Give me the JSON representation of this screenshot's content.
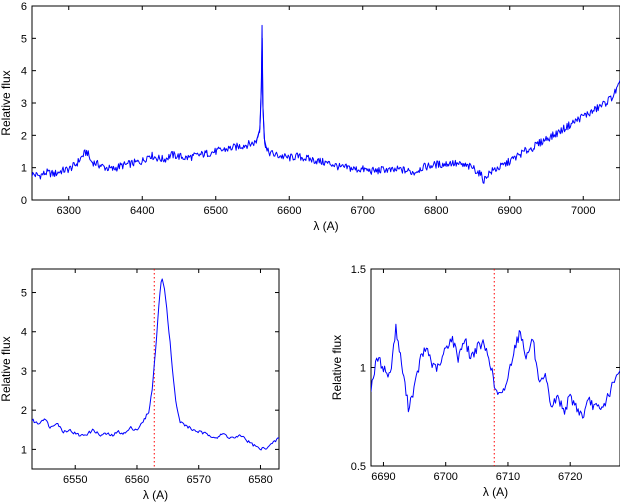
{
  "chart_data": [
    {
      "type": "line",
      "xlabel": "λ (A)",
      "ylabel": "Relative flux",
      "xlim": [
        6250,
        7050
      ],
      "ylim": [
        0,
        6
      ],
      "xticks": [
        6300,
        6400,
        6500,
        6600,
        6700,
        6800,
        6900,
        7000
      ],
      "yticks": [
        0,
        1,
        2,
        3,
        4,
        5,
        6
      ],
      "line_color": "#0000ff",
      "series": [
        {
          "x": [
            6250,
            6260,
            6270,
            6280,
            6290,
            6300,
            6310,
            6320,
            6325,
            6330,
            6340,
            6350,
            6360,
            6370,
            6380,
            6390,
            6400,
            6410,
            6420,
            6430,
            6440,
            6450,
            6460,
            6470,
            6480,
            6490,
            6500,
            6510,
            6520,
            6530,
            6540,
            6550,
            6555,
            6560,
            6562,
            6563,
            6564,
            6566,
            6570,
            6580,
            6590,
            6600,
            6610,
            6620,
            6630,
            6640,
            6650,
            6660,
            6670,
            6680,
            6690,
            6700,
            6710,
            6720,
            6730,
            6740,
            6750,
            6760,
            6770,
            6780,
            6790,
            6800,
            6810,
            6820,
            6830,
            6840,
            6850,
            6860,
            6865,
            6870,
            6880,
            6890,
            6900,
            6910,
            6920,
            6930,
            6940,
            6950,
            6960,
            6970,
            6980,
            6990,
            7000,
            7010,
            7020,
            7030,
            7040,
            7050
          ],
          "y": [
            0.8,
            0.75,
            0.85,
            0.8,
            0.9,
            0.95,
            1.1,
            1.4,
            1.5,
            1.2,
            1.1,
            1.0,
            0.95,
            1.05,
            1.1,
            1.15,
            1.2,
            1.4,
            1.3,
            1.25,
            1.4,
            1.35,
            1.3,
            1.35,
            1.4,
            1.45,
            1.5,
            1.55,
            1.6,
            1.65,
            1.7,
            1.75,
            1.8,
            2.2,
            3.5,
            5.4,
            3.0,
            1.9,
            1.5,
            1.4,
            1.35,
            1.3,
            1.35,
            1.3,
            1.25,
            1.2,
            1.15,
            1.1,
            1.0,
            1.0,
            0.95,
            0.95,
            0.9,
            0.9,
            0.95,
            0.9,
            0.95,
            0.9,
            0.85,
            1.0,
            1.05,
            1.1,
            1.1,
            1.15,
            1.1,
            1.05,
            1.0,
            0.8,
            0.6,
            0.8,
            0.95,
            1.05,
            1.2,
            1.35,
            1.5,
            1.6,
            1.75,
            1.9,
            2.0,
            2.15,
            2.3,
            2.45,
            2.6,
            2.7,
            2.85,
            3.0,
            3.2,
            3.6
          ]
        }
      ]
    },
    {
      "type": "line",
      "xlabel": "λ (A)",
      "ylabel": "Relative flux",
      "xlim": [
        6543,
        6583
      ],
      "ylim": [
        0.5,
        5.6
      ],
      "xticks": [
        6550,
        6560,
        6570,
        6580
      ],
      "yticks": [
        1,
        2,
        3,
        4,
        5
      ],
      "marker_x": 6562.8,
      "marker_color": "#ff0000",
      "line_color": "#0000ff",
      "series": [
        {
          "x": [
            6543,
            6544,
            6545,
            6546,
            6547,
            6548,
            6549,
            6550,
            6551,
            6552,
            6553,
            6554,
            6555,
            6556,
            6557,
            6558,
            6559,
            6560,
            6561,
            6561.5,
            6562,
            6562.5,
            6563,
            6563.5,
            6564,
            6564.5,
            6565,
            6565.5,
            6566,
            6566.5,
            6567,
            6568,
            6569,
            6570,
            6571,
            6572,
            6573,
            6574,
            6575,
            6576,
            6577,
            6578,
            6579,
            6580,
            6581,
            6582,
            6583
          ],
          "y": [
            1.75,
            1.65,
            1.8,
            1.55,
            1.7,
            1.45,
            1.5,
            1.4,
            1.35,
            1.4,
            1.5,
            1.35,
            1.4,
            1.35,
            1.45,
            1.4,
            1.55,
            1.5,
            1.7,
            1.85,
            2.0,
            2.6,
            3.5,
            4.6,
            5.4,
            5.1,
            4.3,
            3.5,
            2.6,
            2.0,
            1.7,
            1.6,
            1.5,
            1.45,
            1.4,
            1.35,
            1.3,
            1.4,
            1.3,
            1.3,
            1.35,
            1.2,
            1.1,
            1.0,
            1.05,
            1.15,
            1.3
          ]
        }
      ]
    },
    {
      "type": "line",
      "xlabel": "λ (A)",
      "ylabel": "Relative flux",
      "xlim": [
        6688,
        6728
      ],
      "ylim": [
        0.5,
        1.5
      ],
      "xticks": [
        6690,
        6700,
        6710,
        6720
      ],
      "yticks": [
        0.5,
        1,
        1.5
      ],
      "ytick_labels": [
        "0.5",
        "1",
        "1.5"
      ],
      "marker_x": 6707.8,
      "marker_color": "#ff0000",
      "line_color": "#0000ff",
      "series": [
        {
          "x": [
            6688,
            6689,
            6690,
            6691,
            6692,
            6693,
            6694,
            6695,
            6696,
            6697,
            6698,
            6699,
            6700,
            6701,
            6702,
            6703,
            6704,
            6705,
            6706,
            6707,
            6708,
            6709,
            6710,
            6711,
            6712,
            6713,
            6714,
            6715,
            6716,
            6717,
            6718,
            6719,
            6720,
            6721,
            6722,
            6723,
            6724,
            6725,
            6726,
            6727,
            6728
          ],
          "y": [
            0.9,
            1.05,
            1.0,
            0.95,
            1.2,
            1.0,
            0.8,
            0.9,
            1.05,
            1.1,
            1.0,
            1.0,
            1.1,
            1.15,
            1.05,
            1.15,
            1.05,
            1.1,
            1.12,
            1.05,
            0.88,
            0.85,
            0.95,
            1.1,
            1.18,
            1.05,
            1.15,
            0.9,
            0.95,
            0.8,
            0.85,
            0.78,
            0.85,
            0.8,
            0.75,
            0.83,
            0.8,
            0.78,
            0.85,
            0.92,
            0.98
          ]
        }
      ]
    }
  ]
}
